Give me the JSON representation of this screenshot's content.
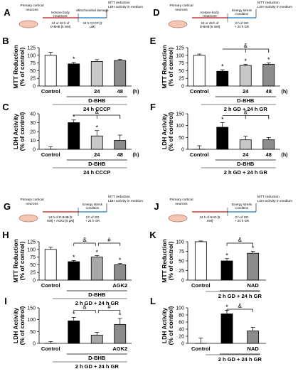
{
  "schematics": [
    {
      "key": "A",
      "box": "Primary cortical neurons",
      "s1": "Ketone body treatment",
      "s2": "Mitochondrial damage",
      "b1": "24 or 48 h of D-BHB [5 mM]",
      "b2": "24 h CCCP [3 µM]",
      "out": "MTT reduction LDH activity in medium"
    },
    {
      "key": "D",
      "box": "Primary cortical neurons",
      "s1": "Ketone body treatment",
      "s2": "Energy stress condition",
      "b1": "24 or 48 h of D-BHB [5 mM]",
      "b2": "2 h of GD + 24 h GR",
      "out": "MTT reduction LDH activity in medium"
    },
    {
      "key": "G",
      "box": "Primary cortical neurons",
      "s1": "",
      "s2": "Energy stress condition",
      "b1": "24 h of D-BHB [5 mM] + AGK2 [5 µM]",
      "b2": "2 h of GD + 24 h GR",
      "out": "MTT reduction LDH activity in medium"
    },
    {
      "key": "J",
      "box": "Primary cortical neurons",
      "s1": "",
      "s2": "Energy stress condition",
      "b1": "24 h of NAD [5 mM]",
      "b2": "2 h of GD + 24 h GR",
      "out": "MTT reduction LDH activity in medium"
    }
  ],
  "chart_data": [
    {
      "key": "B",
      "type": "bar",
      "ylabel": "MTT Reduction (% of control)",
      "ylim": [
        0,
        125
      ],
      "ticks": [
        0,
        25,
        50,
        75,
        100,
        125
      ],
      "categories": [
        "Control",
        "",
        "24",
        "48"
      ],
      "values": [
        100,
        72,
        80,
        83
      ],
      "errors": [
        10,
        5,
        6,
        4
      ],
      "colors": [
        "#ffffff",
        "#000000",
        "#c8c8c8",
        "#8c8c8c"
      ],
      "stars": [
        "",
        "*",
        "",
        ""
      ],
      "hunit": "(h)",
      "group": "D-BHB",
      "condition": "24 h CCCP",
      "bracket": null
    },
    {
      "key": "C",
      "type": "bar",
      "ylabel": "LDH Activity (% of control)",
      "ylim": [
        0,
        40
      ],
      "ticks": [
        0,
        10,
        20,
        30,
        40
      ],
      "categories": [
        "Control",
        "",
        "24",
        "48"
      ],
      "values": [
        0,
        30,
        15,
        10
      ],
      "errors": [
        3,
        3,
        6,
        6
      ],
      "colors": [
        "#ffffff",
        "#000000",
        "#c8c8c8",
        "#8c8c8c"
      ],
      "stars": [
        "",
        "*",
        "*",
        ""
      ],
      "hunit": "(h)",
      "group": "D-BHB",
      "condition": "24 h CCCP",
      "bracket": {
        "from": 1,
        "to": [
          2,
          3
        ],
        "label": "&"
      }
    },
    {
      "key": "E",
      "type": "bar",
      "ylabel": "MTT Reduction (% of control)",
      "ylim": [
        0,
        125
      ],
      "ticks": [
        0,
        25,
        50,
        75,
        100,
        125
      ],
      "categories": [
        "Control",
        "",
        "24",
        "48"
      ],
      "values": [
        100,
        48,
        67,
        71
      ],
      "errors": [
        4,
        5,
        4,
        4
      ],
      "colors": [
        "#ffffff",
        "#000000",
        "#c8c8c8",
        "#8c8c8c"
      ],
      "stars": [
        "",
        "*",
        "*",
        "*"
      ],
      "hunit": "(h)",
      "group": "D-BHB",
      "condition": "2 h GD + 24 h GR",
      "bracket": {
        "from": 1,
        "to": [
          2,
          3
        ],
        "label": "&"
      }
    },
    {
      "key": "F",
      "type": "bar",
      "ylabel": "LDH Activity (% of control)",
      "ylim": [
        0,
        150
      ],
      "ticks": [
        0,
        50,
        100,
        150
      ],
      "categories": [
        "Control",
        "",
        "24",
        "48"
      ],
      "values": [
        0,
        93,
        40,
        40
      ],
      "errors": [
        15,
        20,
        15,
        10
      ],
      "colors": [
        "#ffffff",
        "#000000",
        "#c8c8c8",
        "#8c8c8c"
      ],
      "stars": [
        "",
        "*",
        "",
        ""
      ],
      "hunit": "(h)",
      "group": "D-BHB",
      "condition": "2 h GD + 24 h GR",
      "bracket": {
        "from": 1,
        "to": [
          2,
          3
        ],
        "label": "&"
      }
    },
    {
      "key": "H",
      "type": "bar",
      "ylabel": "MTT Reduction (% of control)",
      "ylim": [
        0,
        125
      ],
      "ticks": [
        0,
        25,
        50,
        75,
        100,
        125
      ],
      "categories": [
        "Control",
        "",
        "",
        "AGK2"
      ],
      "values": [
        100,
        60,
        75,
        50
      ],
      "errors": [
        7,
        4,
        5,
        4
      ],
      "colors": [
        "#ffffff",
        "#000000",
        "#a8a8a8",
        "#8c8c8c"
      ],
      "stars": [
        "",
        "*",
        "*",
        "*"
      ],
      "hunit": "",
      "group": "D-BHB",
      "condition": "2 h GD + 24 h GR",
      "bracket": {
        "pairs": [
          {
            "from": 1,
            "to": 2,
            "label": "&"
          },
          {
            "from": 2,
            "to": 3,
            "label": "#"
          }
        ]
      }
    },
    {
      "key": "I",
      "type": "bar",
      "ylabel": "LDH Activity (% of control)",
      "ylim": [
        0,
        150
      ],
      "ticks": [
        0,
        50,
        100,
        150
      ],
      "categories": [
        "Control",
        "",
        "",
        "AGK2"
      ],
      "values": [
        0,
        95,
        35,
        80
      ],
      "errors": [
        8,
        15,
        12,
        25
      ],
      "colors": [
        "#ffffff",
        "#000000",
        "#a8a8a8",
        "#8c8c8c"
      ],
      "stars": [
        "",
        "*",
        "",
        "*"
      ],
      "hunit": "",
      "group": "D-BHB",
      "condition": "2 h GD + 24 h GR",
      "bracket": {
        "pairs": [
          {
            "from": 1,
            "to": 2,
            "label": "&"
          },
          {
            "from": 2,
            "to": 3,
            "label": "#"
          }
        ]
      }
    },
    {
      "key": "K",
      "type": "bar",
      "ylabel": "MTT Reduction (% of control)",
      "ylim": [
        0,
        100
      ],
      "ticks": [
        0,
        25,
        50,
        75,
        100
      ],
      "categories": [
        "Control",
        "",
        "NAD"
      ],
      "values": [
        100,
        50,
        70
      ],
      "errors": [
        2,
        6,
        5
      ],
      "colors": [
        "#ffffff",
        "#000000",
        "#8c8c8c"
      ],
      "stars": [
        "",
        "*",
        "*"
      ],
      "hunit": "",
      "group": "",
      "condition": "2 h GD + 24 h GR",
      "bracket": {
        "pairs": [
          {
            "from": 1,
            "to": 2,
            "label": "&"
          }
        ]
      }
    },
    {
      "key": "L",
      "type": "bar",
      "ylabel": "LDH Activity (% of control)",
      "ylim": [
        0,
        100
      ],
      "ticks": [
        0,
        20,
        40,
        60,
        80,
        100
      ],
      "categories": [
        "Control",
        "",
        "NAD"
      ],
      "values": [
        0,
        83,
        35
      ],
      "errors": [
        15,
        10,
        10
      ],
      "colors": [
        "#ffffff",
        "#000000",
        "#8c8c8c"
      ],
      "stars": [
        "",
        "*",
        ""
      ],
      "hunit": "",
      "group": "",
      "condition": "2 h GD + 24 h GR",
      "bracket": {
        "pairs": [
          {
            "from": 1,
            "to": 2,
            "label": "&"
          }
        ]
      }
    }
  ]
}
